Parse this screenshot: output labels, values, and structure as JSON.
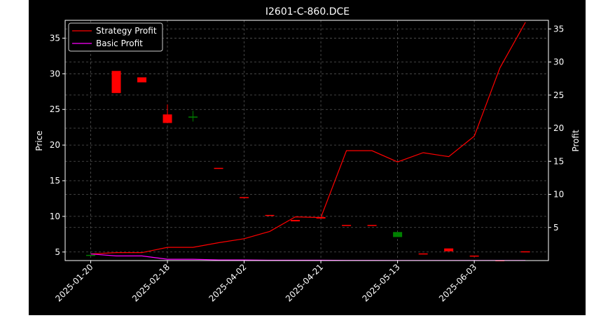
{
  "chart_data": {
    "type": "candlestick_with_lines",
    "title": "I2601-C-860.DCE",
    "ylabel_left": "Price",
    "ylabel_right": "Profit",
    "ylim_left": [
      3.8,
      37.5
    ],
    "ylim_right": [
      0,
      36.3
    ],
    "y_ticks_left": [
      5,
      10,
      15,
      20,
      25,
      30,
      35
    ],
    "y_ticks_right": [
      5,
      10,
      15,
      20,
      25,
      30,
      35
    ],
    "x_tick_labels": [
      {
        "label": "2025-01-20",
        "index": 0
      },
      {
        "label": "2025-02-18",
        "index": 3
      },
      {
        "label": "2025-04-02",
        "index": 6
      },
      {
        "label": "2025-04-21",
        "index": 9
      },
      {
        "label": "2025-05-13",
        "index": 12
      },
      {
        "label": "2025-06-03",
        "index": 15
      }
    ],
    "x_range": [
      -1,
      17.9
    ],
    "grid": true,
    "legend_position": "top-left",
    "legend": [
      {
        "label": "Strategy Profit",
        "color": "#ff0000"
      },
      {
        "label": "Basic Profit",
        "color": "#ff00ff"
      }
    ],
    "candles": [
      {
        "i": 0,
        "open": 4.6,
        "close": 4.6,
        "high": 4.6,
        "low": 4.6
      },
      {
        "i": 1,
        "open": 30.4,
        "close": 27.3,
        "high": 30.4,
        "low": 27.3
      },
      {
        "i": 2,
        "open": 29.5,
        "close": 28.8,
        "high": 29.5,
        "low": 28.8
      },
      {
        "i": 3,
        "open": 24.3,
        "close": 23.1,
        "high": 25.7,
        "low": 23.1
      },
      {
        "i": 4,
        "open": 24.0,
        "close": 24.0,
        "high": 24.8,
        "low": 23.3
      },
      {
        "i": 5,
        "open": 16.8,
        "close": 16.7,
        "high": 16.8,
        "low": 16.7
      },
      {
        "i": 6,
        "open": 12.7,
        "close": 12.6,
        "high": 12.7,
        "low": 12.6
      },
      {
        "i": 7,
        "open": 10.2,
        "close": 10.1,
        "high": 10.2,
        "low": 10.1
      },
      {
        "i": 8,
        "open": 9.5,
        "close": 9.3,
        "high": 9.5,
        "low": 9.3
      },
      {
        "i": 9,
        "open": 9.9,
        "close": 9.7,
        "high": 9.9,
        "low": 9.7
      },
      {
        "i": 10,
        "open": 8.8,
        "close": 8.7,
        "high": 8.8,
        "low": 8.7
      },
      {
        "i": 11,
        "open": 8.8,
        "close": 8.7,
        "high": 8.8,
        "low": 8.7
      },
      {
        "i": 12,
        "open": 7.1,
        "close": 7.8,
        "high": 7.8,
        "low": 7.1
      },
      {
        "i": 13,
        "open": 4.8,
        "close": 4.7,
        "high": 4.8,
        "low": 4.7
      },
      {
        "i": 14,
        "open": 5.5,
        "close": 5.1,
        "high": 5.5,
        "low": 5.1
      },
      {
        "i": 15,
        "open": 4.5,
        "close": 4.4,
        "high": 4.5,
        "low": 4.4
      },
      {
        "i": 16,
        "open": 3.85,
        "close": 3.8,
        "high": 3.85,
        "low": 3.8
      },
      {
        "i": 17,
        "open": 5.1,
        "close": 5.0,
        "high": 5.1,
        "low": 5.0
      }
    ],
    "series": [
      {
        "name": "Strategy Profit",
        "color": "#ff0000",
        "axis": "right",
        "x": [
          0,
          1,
          2,
          3,
          4,
          5,
          6,
          7,
          8,
          9,
          10,
          11,
          12,
          13,
          14,
          15,
          16,
          17
        ],
        "values": [
          1.0,
          1.2,
          1.2,
          2.0,
          2.0,
          2.7,
          3.3,
          4.4,
          6.6,
          6.5,
          16.6,
          16.6,
          14.9,
          16.3,
          15.7,
          18.8,
          29.1,
          36.0
        ]
      },
      {
        "name": "Basic Profit",
        "color": "#ff00ff",
        "axis": "right",
        "x": [
          0,
          1,
          2,
          3,
          4,
          5,
          6,
          7,
          8,
          9,
          10,
          11,
          12,
          13,
          14,
          15,
          16,
          17
        ],
        "values": [
          1.0,
          0.7,
          0.7,
          0.2,
          0.2,
          0.1,
          0.1,
          0.05,
          0.05,
          0.05,
          0.03,
          0.03,
          0.02,
          0.02,
          0.02,
          0.01,
          0.01,
          0.01
        ]
      }
    ],
    "colors": {
      "background": "#000000",
      "axes_edge": "#ffffff",
      "text": "#ffffff",
      "grid": "#555555",
      "up": "#008000",
      "down": "#ff0000"
    }
  }
}
